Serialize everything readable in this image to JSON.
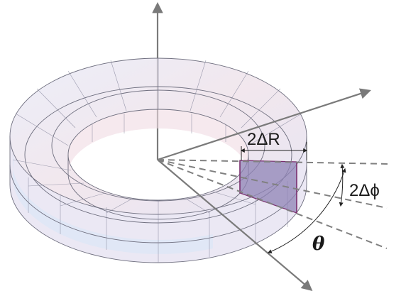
{
  "labels": {
    "delta_r": "2ΔR",
    "delta_phi": "2Δϕ",
    "theta": "θ"
  },
  "colors": {
    "torus_fill": "#dcdcee",
    "torus_pink": "#f3dde3",
    "torus_blue": "#dde8f6",
    "segment_fill": "#8f83b5",
    "segment_edge": "#7a2e6e",
    "axis": "#7a7a7a"
  }
}
